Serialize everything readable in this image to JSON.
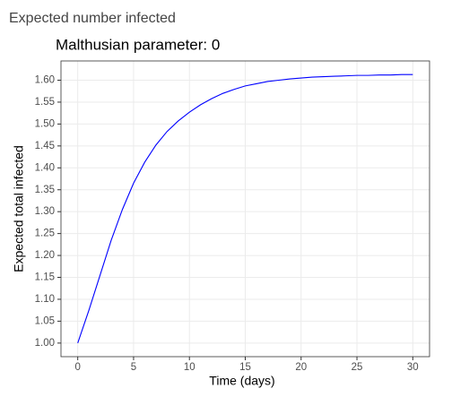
{
  "header": {
    "title": "Expected number infected"
  },
  "chart_data": {
    "type": "line",
    "title": "Malthusian parameter: 0",
    "x_label": "Time (days)",
    "y_label": "Expected total infected",
    "x": [
      0,
      1,
      2,
      3,
      4,
      5,
      6,
      7,
      8,
      9,
      10,
      11,
      12,
      13,
      14,
      15,
      16,
      17,
      18,
      19,
      20,
      21,
      22,
      23,
      24,
      25,
      26,
      27,
      28,
      29,
      30
    ],
    "series": [
      {
        "color": "#0000ff",
        "values": [
          1.0,
          1.075,
          1.155,
          1.235,
          1.305,
          1.365,
          1.413,
          1.452,
          1.483,
          1.507,
          1.527,
          1.544,
          1.558,
          1.57,
          1.579,
          1.587,
          1.592,
          1.597,
          1.6,
          1.603,
          1.605,
          1.607,
          1.608,
          1.609,
          1.61,
          1.611,
          1.611,
          1.612,
          1.612,
          1.613,
          1.613
        ]
      }
    ],
    "xlim": [
      -1.5,
      31.5
    ],
    "xticks": [
      0,
      5,
      10,
      15,
      20,
      25,
      30
    ],
    "ylim": [
      0.969,
      1.644
    ],
    "yticks": [
      {
        "value": 1,
        "label": "1.00"
      },
      1.05,
      {
        "value": 1.1,
        "label": "1.10"
      },
      1.15,
      {
        "value": 1.2,
        "label": "1.20"
      },
      1.25,
      {
        "value": 1.3,
        "label": "1.30"
      },
      1.35,
      {
        "value": 1.4,
        "label": "1.40"
      },
      1.45,
      {
        "value": 1.5,
        "label": "1.50"
      },
      1.55,
      {
        "value": 1.6,
        "label": "1.60"
      }
    ],
    "grid": true
  }
}
